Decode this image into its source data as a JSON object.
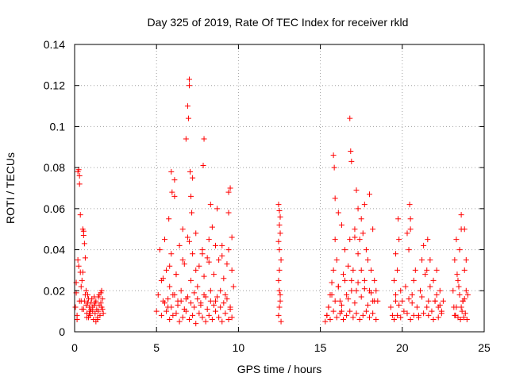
{
  "chart_data": {
    "type": "scatter",
    "title": "Day 325 of 2019, Rate Of TEC Index for receiver rkld",
    "xlabel": "GPS time / hours",
    "ylabel": "ROTI / TECUs",
    "xlim": [
      0,
      25
    ],
    "ylim": [
      0,
      0.14
    ],
    "xticks": [
      0,
      5,
      10,
      15,
      20,
      25
    ],
    "xtick_labels": [
      "0",
      "5",
      "10",
      "15",
      "20",
      "25"
    ],
    "yticks": [
      0,
      0.02,
      0.04,
      0.06,
      0.08,
      0.1,
      0.12,
      0.14
    ],
    "ytick_labels": [
      "0",
      "0.02",
      "0.04",
      "0.06",
      "0.08",
      "0.1",
      "0.12",
      "0.14"
    ],
    "grid": true,
    "marker": "+",
    "color": "#ff0000",
    "series": [
      {
        "name": "ROTI",
        "x": [
          0.05,
          0.1,
          0.15,
          0.2,
          0.25,
          0.3,
          0.35,
          0.4,
          0.45,
          0.5,
          0.55,
          0.6,
          0.65,
          0.7,
          0.75,
          0.8,
          0.85,
          0.9,
          0.95,
          1.0,
          1.05,
          1.1,
          1.15,
          1.2,
          1.25,
          1.3,
          1.35,
          1.4,
          1.45,
          1.5,
          1.55,
          1.6,
          1.65,
          1.7,
          1.75,
          0.2,
          0.3,
          0.35,
          0.15,
          0.55,
          0.6,
          0.65,
          0.25,
          0.45,
          0.5,
          0.7,
          0.8,
          0.9,
          1.0,
          1.2,
          1.4,
          1.6,
          0.3,
          0.55,
          0.75,
          0.85,
          1.1,
          1.3,
          1.5,
          1.7,
          0.1,
          0.4,
          0.95,
          1.25,
          1.45,
          1.65,
          5.0,
          5.1,
          5.2,
          5.3,
          5.4,
          5.5,
          5.6,
          5.7,
          5.8,
          5.9,
          6.0,
          6.1,
          6.2,
          6.3,
          6.4,
          6.5,
          6.6,
          6.7,
          6.8,
          6.9,
          7.0,
          7.1,
          7.2,
          7.3,
          7.4,
          7.5,
          7.6,
          7.7,
          7.8,
          7.9,
          8.0,
          8.1,
          8.2,
          8.3,
          8.4,
          8.5,
          8.6,
          8.7,
          8.8,
          8.9,
          9.0,
          9.1,
          9.2,
          9.3,
          9.4,
          9.5,
          9.6,
          9.7,
          5.3,
          5.6,
          5.8,
          6.0,
          6.2,
          6.4,
          6.6,
          6.8,
          7.0,
          7.2,
          7.4,
          7.6,
          7.8,
          8.0,
          8.2,
          8.4,
          8.6,
          8.8,
          9.0,
          9.2,
          9.4,
          9.6,
          5.5,
          5.7,
          5.9,
          6.1,
          6.3,
          6.5,
          6.7,
          6.9,
          7.1,
          7.3,
          7.5,
          7.7,
          7.9,
          8.1,
          8.3,
          8.5,
          8.7,
          8.9,
          9.1,
          9.3,
          9.5,
          5.4,
          5.8,
          6.2,
          6.6,
          7.0,
          7.4,
          7.8,
          8.2,
          8.6,
          9.0,
          9.4,
          5.9,
          6.1,
          6.8,
          6.9,
          6.95,
          7.0,
          7.05,
          7.1,
          7.15,
          7.2,
          7.9,
          7.85,
          8.3,
          9.5,
          9.6,
          9.4,
          5.75,
          5.95,
          12.45,
          12.5,
          12.55,
          12.6,
          12.5,
          12.45,
          12.55,
          12.5,
          12.6,
          12.5,
          12.45,
          12.55,
          12.5,
          12.55,
          12.5,
          12.45,
          15.3,
          15.4,
          15.5,
          15.6,
          15.7,
          15.8,
          15.9,
          16.0,
          16.1,
          16.2,
          16.3,
          16.4,
          16.5,
          16.6,
          16.7,
          16.8,
          16.9,
          17.0,
          17.1,
          17.2,
          17.3,
          17.4,
          17.5,
          17.6,
          17.7,
          17.8,
          17.9,
          18.0,
          18.1,
          18.2,
          18.3,
          18.4,
          18.5,
          15.4,
          15.6,
          15.8,
          16.0,
          16.2,
          16.4,
          16.6,
          16.8,
          17.0,
          17.2,
          17.4,
          17.6,
          17.8,
          18.0,
          18.2,
          18.4,
          15.5,
          15.9,
          16.3,
          16.7,
          17.1,
          17.5,
          17.9,
          18.3,
          15.7,
          16.1,
          16.5,
          16.9,
          17.3,
          17.7,
          18.1,
          15.8,
          15.85,
          15.9,
          16.8,
          16.85,
          16.9,
          17.2,
          17.3,
          17.5,
          18.0,
          18.2,
          16.1,
          16.3,
          17.7,
          17.1,
          19.3,
          19.4,
          19.5,
          19.6,
          19.7,
          19.8,
          19.9,
          20.0,
          20.1,
          20.2,
          20.3,
          20.4,
          20.5,
          20.6,
          20.7,
          20.8,
          20.9,
          21.0,
          21.1,
          21.2,
          21.3,
          21.4,
          21.5,
          21.6,
          21.7,
          21.8,
          21.9,
          22.0,
          22.1,
          22.2,
          22.3,
          22.4,
          22.5,
          19.5,
          19.7,
          19.9,
          20.3,
          20.5,
          20.7,
          21.0,
          21.3,
          21.6,
          21.9,
          22.2,
          22.4,
          19.6,
          19.8,
          20.4,
          20.6,
          21.2,
          21.5,
          22.0,
          22.3,
          20.45,
          19.75,
          21.55,
          20.5,
          19.6,
          21.7,
          22.1,
          23.1,
          23.2,
          23.3,
          23.4,
          23.5,
          23.6,
          23.7,
          23.8,
          23.9,
          24.0,
          23.15,
          23.25,
          23.35,
          23.45,
          23.55,
          23.65,
          23.75,
          23.85,
          23.95,
          23.2,
          23.4,
          23.6,
          23.8,
          23.5,
          23.7,
          23.9,
          23.3,
          23.6,
          23.8
        ],
        "y": [
          0.012,
          0.024,
          0.008,
          0.035,
          0.079,
          0.076,
          0.029,
          0.022,
          0.011,
          0.05,
          0.047,
          0.015,
          0.018,
          0.013,
          0.009,
          0.014,
          0.007,
          0.012,
          0.008,
          0.011,
          0.016,
          0.01,
          0.006,
          0.013,
          0.009,
          0.015,
          0.011,
          0.007,
          0.017,
          0.013,
          0.008,
          0.019,
          0.012,
          0.016,
          0.009,
          0.078,
          0.072,
          0.057,
          0.006,
          0.049,
          0.043,
          0.036,
          0.032,
          0.025,
          0.029,
          0.02,
          0.018,
          0.009,
          0.014,
          0.017,
          0.006,
          0.014,
          0.015,
          0.011,
          0.007,
          0.016,
          0.012,
          0.005,
          0.018,
          0.011,
          0.019,
          0.015,
          0.01,
          0.014,
          0.01,
          0.02,
          0.01,
          0.018,
          0.04,
          0.025,
          0.015,
          0.045,
          0.03,
          0.012,
          0.022,
          0.038,
          0.018,
          0.074,
          0.028,
          0.015,
          0.042,
          0.02,
          0.05,
          0.033,
          0.016,
          0.046,
          0.12,
          0.025,
          0.038,
          0.019,
          0.048,
          0.022,
          0.032,
          0.014,
          0.04,
          0.027,
          0.017,
          0.036,
          0.045,
          0.02,
          0.051,
          0.028,
          0.015,
          0.06,
          0.035,
          0.02,
          0.042,
          0.026,
          0.018,
          0.033,
          0.068,
          0.012,
          0.03,
          0.022,
          0.008,
          0.01,
          0.006,
          0.008,
          0.009,
          0.005,
          0.007,
          0.01,
          0.006,
          0.008,
          0.004,
          0.009,
          0.007,
          0.005,
          0.008,
          0.006,
          0.01,
          0.007,
          0.005,
          0.009,
          0.006,
          0.007,
          0.014,
          0.016,
          0.012,
          0.018,
          0.013,
          0.015,
          0.011,
          0.017,
          0.014,
          0.012,
          0.016,
          0.013,
          0.018,
          0.011,
          0.015,
          0.013,
          0.017,
          0.012,
          0.014,
          0.016,
          0.011,
          0.026,
          0.032,
          0.028,
          0.035,
          0.044,
          0.03,
          0.038,
          0.034,
          0.042,
          0.037,
          0.04,
          0.078,
          0.066,
          0.094,
          0.11,
          0.104,
          0.123,
          0.078,
          0.066,
          0.058,
          0.075,
          0.094,
          0.081,
          0.062,
          0.07,
          0.046,
          0.058,
          0.055,
          0.068,
          0.008,
          0.012,
          0.015,
          0.005,
          0.02,
          0.025,
          0.018,
          0.03,
          0.035,
          0.04,
          0.044,
          0.048,
          0.052,
          0.056,
          0.059,
          0.062,
          0.005,
          0.008,
          0.012,
          0.018,
          0.024,
          0.03,
          0.045,
          0.035,
          0.022,
          0.015,
          0.01,
          0.028,
          0.04,
          0.018,
          0.032,
          0.045,
          0.025,
          0.03,
          0.05,
          0.02,
          0.038,
          0.045,
          0.03,
          0.048,
          0.025,
          0.04,
          0.035,
          0.02,
          0.03,
          0.015,
          0.025,
          0.02,
          0.015,
          0.008,
          0.006,
          0.01,
          0.007,
          0.009,
          0.006,
          0.008,
          0.01,
          0.007,
          0.009,
          0.006,
          0.008,
          0.01,
          0.007,
          0.009,
          0.006,
          0.012,
          0.015,
          0.013,
          0.016,
          0.014,
          0.017,
          0.013,
          0.015,
          0.018,
          0.022,
          0.025,
          0.02,
          0.024,
          0.021,
          0.019,
          0.086,
          0.08,
          0.065,
          0.104,
          0.088,
          0.083,
          0.069,
          0.06,
          0.055,
          0.067,
          0.05,
          0.058,
          0.052,
          0.062,
          0.046,
          0.012,
          0.008,
          0.025,
          0.018,
          0.03,
          0.045,
          0.02,
          0.015,
          0.01,
          0.022,
          0.048,
          0.04,
          0.055,
          0.018,
          0.025,
          0.03,
          0.012,
          0.008,
          0.02,
          0.035,
          0.042,
          0.028,
          0.03,
          0.015,
          0.022,
          0.01,
          0.025,
          0.015,
          0.018,
          0.012,
          0.02,
          0.01,
          0.015,
          0.006,
          0.008,
          0.007,
          0.009,
          0.006,
          0.008,
          0.007,
          0.009,
          0.008,
          0.006,
          0.007,
          0.009,
          0.015,
          0.013,
          0.016,
          0.014,
          0.017,
          0.012,
          0.015,
          0.013,
          0.062,
          0.055,
          0.045,
          0.05,
          0.038,
          0.035,
          0.03,
          0.02,
          0.035,
          0.012,
          0.025,
          0.04,
          0.05,
          0.015,
          0.03,
          0.02,
          0.018,
          0.012,
          0.008,
          0.028,
          0.022,
          0.006,
          0.01,
          0.007,
          0.009,
          0.006,
          0.008,
          0.007,
          0.012,
          0.016,
          0.018,
          0.015,
          0.035,
          0.045,
          0.057,
          0.05
        ],
        "color": "#ff0000"
      }
    ]
  }
}
